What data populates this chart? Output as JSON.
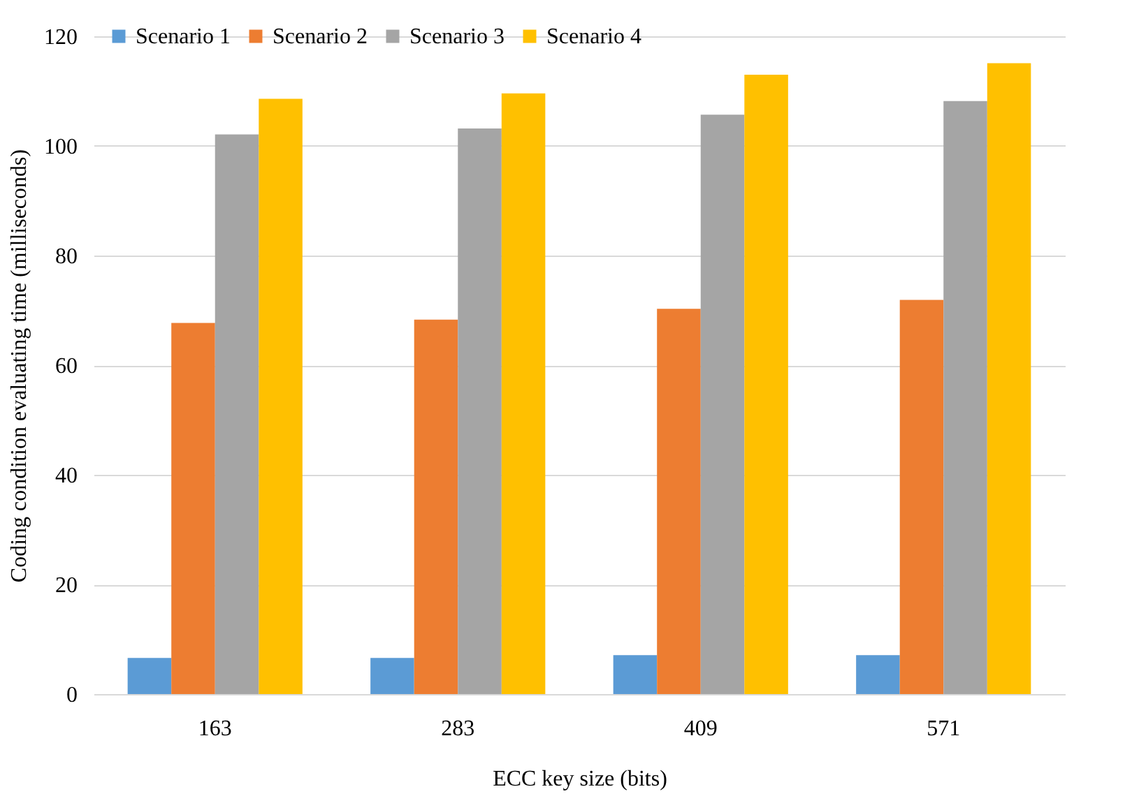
{
  "chart_data": {
    "type": "bar",
    "xlabel": "ECC key size (bits)",
    "ylabel": "Coding condition evaluating time (milliseconds)",
    "categories": [
      "163",
      "283",
      "409",
      "571"
    ],
    "series": [
      {
        "name": "Scenario 1",
        "color": "#5b9bd5",
        "values": [
          6.6,
          6.6,
          7.1,
          7.1
        ]
      },
      {
        "name": "Scenario 2",
        "color": "#ed7d31",
        "values": [
          67.7,
          68.3,
          70.3,
          71.9
        ]
      },
      {
        "name": "Scenario 3",
        "color": "#a5a5a5",
        "values": [
          102.1,
          103.2,
          105.7,
          108.2
        ]
      },
      {
        "name": "Scenario 4",
        "color": "#ffc000",
        "values": [
          108.6,
          109.6,
          113,
          115.1
        ]
      }
    ],
    "ylim": [
      0,
      120
    ],
    "yticks": [
      0,
      20,
      40,
      60,
      80,
      100,
      120
    ],
    "grid": "y",
    "legend": "top left"
  }
}
